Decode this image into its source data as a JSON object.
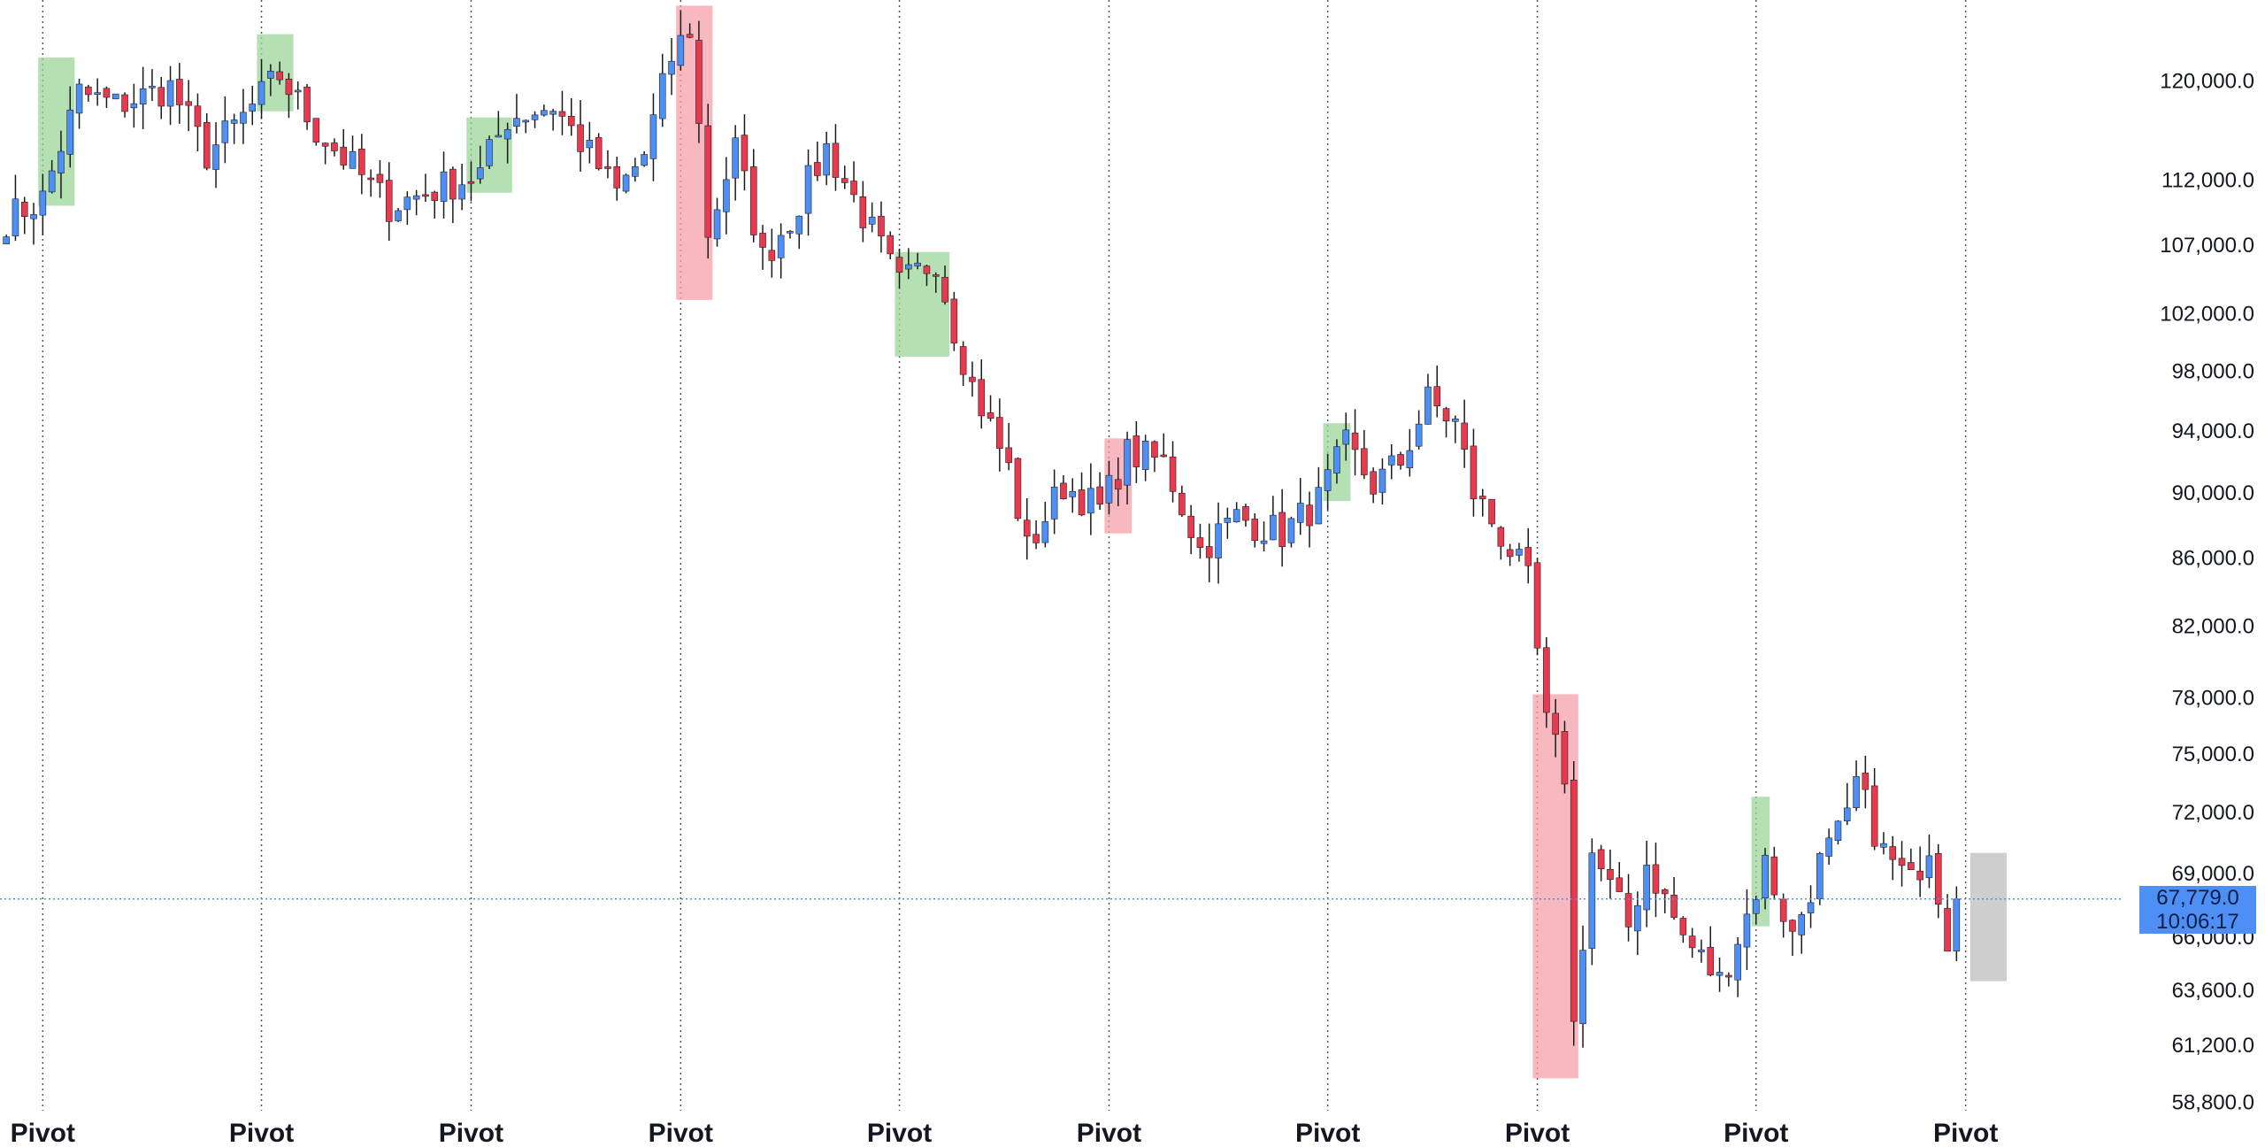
{
  "colors": {
    "up_candle": "#4d8ff5",
    "down_candle": "#e8394f",
    "wick": "#1a1a1a",
    "up_zone": "#9bd59b",
    "down_zone": "#f4a0ab",
    "projection_zone": "#bdbdbd",
    "pivot_line": "#555555",
    "price_line": "#4d8ff5"
  },
  "current_price": {
    "price": "67,779.0",
    "countdown": "10:06:17",
    "value": 67779
  },
  "chart_data": {
    "type": "candlestick",
    "y_scale": "log",
    "ylim": [
      57000,
      127000
    ],
    "y_ticks": [
      {
        "value": 120000,
        "label": "120,000.0"
      },
      {
        "value": 112000,
        "label": "112,000.0"
      },
      {
        "value": 107000,
        "label": "107,000.0"
      },
      {
        "value": 102000,
        "label": "102,000.0"
      },
      {
        "value": 98000,
        "label": "98,000.0"
      },
      {
        "value": 94000,
        "label": "94,000.0"
      },
      {
        "value": 90000,
        "label": "90,000.0"
      },
      {
        "value": 86000,
        "label": "86,000.0"
      },
      {
        "value": 82000,
        "label": "82,000.0"
      },
      {
        "value": 78000,
        "label": "78,000.0"
      },
      {
        "value": 75000,
        "label": "75,000.0"
      },
      {
        "value": 72000,
        "label": "72,000.0"
      },
      {
        "value": 69000,
        "label": "69,000.0"
      },
      {
        "value": 66000,
        "label": "66,000.0"
      },
      {
        "value": 63600,
        "label": "63,600.0"
      },
      {
        "value": 61200,
        "label": "61,200.0"
      },
      {
        "value": 58800,
        "label": "58,800.0"
      }
    ],
    "bar_count": 235,
    "pivot_bars": [
      4,
      28,
      51,
      74,
      98,
      121,
      145,
      168,
      192,
      215
    ],
    "pivot_label": "Pivot",
    "anchors": [
      [
        0,
        109000
      ],
      [
        4,
        110500
      ],
      [
        8,
        119000
      ],
      [
        12,
        118000
      ],
      [
        18,
        119500
      ],
      [
        22,
        114000
      ],
      [
        26,
        117000
      ],
      [
        30,
        120500
      ],
      [
        34,
        116000
      ],
      [
        38,
        113000
      ],
      [
        42,
        110000
      ],
      [
        46,
        111000
      ],
      [
        52,
        112500
      ],
      [
        55,
        117000
      ],
      [
        60,
        118000
      ],
      [
        64,
        114000
      ],
      [
        67,
        111000
      ],
      [
        70,
        114000
      ],
      [
        73,
        122000
      ],
      [
        75,
        124500
      ],
      [
        77,
        108000
      ],
      [
        80,
        114500
      ],
      [
        83,
        106000
      ],
      [
        86,
        109000
      ],
      [
        90,
        114500
      ],
      [
        95,
        108000
      ],
      [
        98,
        104000
      ],
      [
        102,
        106000
      ],
      [
        104,
        101000
      ],
      [
        106,
        97000
      ],
      [
        110,
        91500
      ],
      [
        112,
        86500
      ],
      [
        116,
        90500
      ],
      [
        120,
        89000
      ],
      [
        123,
        92500
      ],
      [
        127,
        92000
      ],
      [
        131,
        86500
      ],
      [
        135,
        88500
      ],
      [
        140,
        87500
      ],
      [
        144,
        89500
      ],
      [
        147,
        93000
      ],
      [
        150,
        90500
      ],
      [
        153,
        92000
      ],
      [
        156,
        96000
      ],
      [
        159,
        94500
      ],
      [
        161,
        90000
      ],
      [
        165,
        86500
      ],
      [
        167,
        84500
      ],
      [
        169,
        76500
      ],
      [
        171,
        74000
      ],
      [
        172,
        62000
      ],
      [
        174,
        70000
      ],
      [
        178,
        66500
      ],
      [
        180,
        69500
      ],
      [
        184,
        66000
      ],
      [
        188,
        64000
      ],
      [
        191,
        67000
      ],
      [
        193,
        69500
      ],
      [
        196,
        66000
      ],
      [
        199,
        69500
      ],
      [
        202,
        71500
      ],
      [
        203,
        73500
      ],
      [
        206,
        70000
      ],
      [
        209,
        68500
      ],
      [
        211,
        70500
      ],
      [
        213,
        66000
      ],
      [
        214,
        67779
      ]
    ],
    "zones": [
      {
        "type": "up",
        "start": 4,
        "end": 7,
        "high": 122000,
        "low": 110000
      },
      {
        "type": "up",
        "start": 28,
        "end": 31,
        "high": 124000,
        "low": 117500
      },
      {
        "type": "up",
        "start": 51,
        "end": 55,
        "high": 117000,
        "low": 111000
      },
      {
        "type": "down",
        "start": 74,
        "end": 77,
        "high": 126500,
        "low": 103000
      },
      {
        "type": "up",
        "start": 98,
        "end": 103,
        "high": 106500,
        "low": 99000
      },
      {
        "type": "down",
        "start": 121,
        "end": 123,
        "high": 93500,
        "low": 87500
      },
      {
        "type": "up",
        "start": 145,
        "end": 147,
        "high": 94500,
        "low": 89500
      },
      {
        "type": "down",
        "start": 168,
        "end": 172,
        "high": 78200,
        "low": 59800
      },
      {
        "type": "up",
        "start": 192,
        "end": 193,
        "high": 72800,
        "low": 66500
      },
      {
        "type": "projection",
        "start": 216,
        "end": 219,
        "high": 70000,
        "low": 64000
      }
    ]
  }
}
